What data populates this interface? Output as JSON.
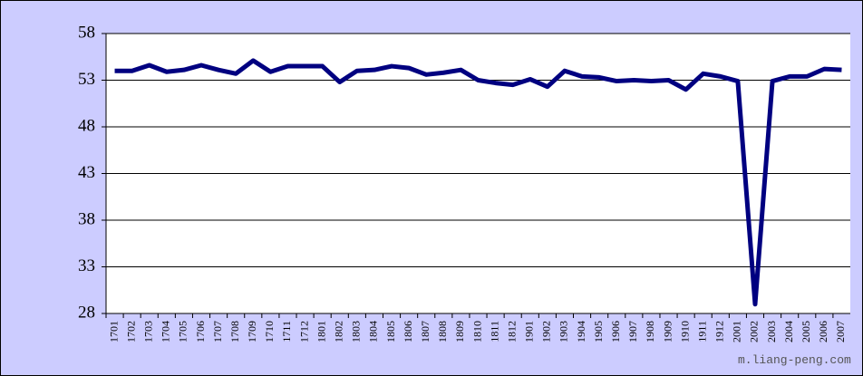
{
  "chart_data": {
    "type": "line",
    "categories": [
      "1701",
      "1702",
      "1703",
      "1704",
      "1705",
      "1706",
      "1707",
      "1708",
      "1709",
      "1710",
      "1711",
      "1712",
      "1801",
      "1802",
      "1803",
      "1804",
      "1805",
      "1806",
      "1807",
      "1808",
      "1809",
      "1810",
      "1811",
      "1812",
      "1901",
      "1902",
      "1903",
      "1904",
      "1905",
      "1906",
      "1907",
      "1908",
      "1909",
      "1910",
      "1911",
      "1912",
      "2001",
      "2002",
      "2003",
      "2004",
      "2005",
      "2006",
      "2007"
    ],
    "values": [
      54.0,
      54.0,
      54.6,
      53.9,
      54.1,
      54.6,
      54.1,
      53.7,
      55.1,
      53.9,
      54.5,
      54.5,
      54.5,
      52.8,
      54.0,
      54.1,
      54.5,
      54.3,
      53.6,
      53.8,
      54.1,
      53.0,
      52.7,
      52.5,
      53.1,
      52.3,
      54.0,
      53.4,
      53.3,
      52.9,
      53.0,
      52.9,
      53.0,
      52.0,
      53.7,
      53.4,
      52.9,
      29.0,
      52.9,
      53.4,
      53.4,
      54.2,
      54.1
    ],
    "color": "#000080",
    "ylim": [
      28,
      58
    ],
    "yticks": [
      28,
      33,
      38,
      43,
      48,
      53,
      58
    ],
    "grid": true,
    "watermark": "m.liang-peng.com"
  }
}
